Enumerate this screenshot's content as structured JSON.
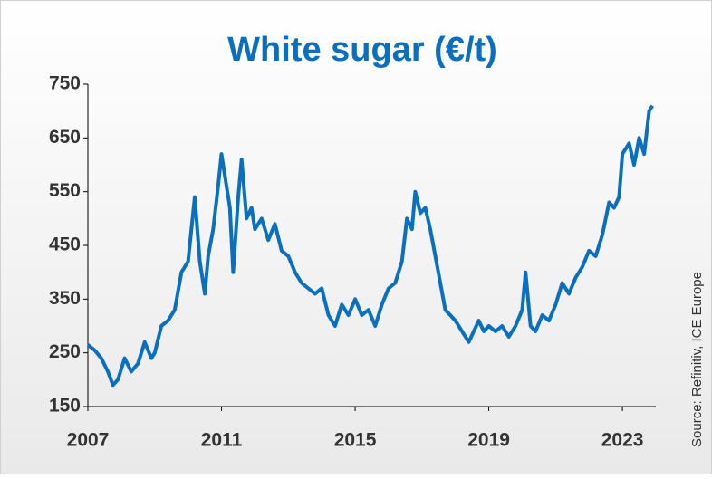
{
  "chart_data": {
    "type": "line",
    "title": "White sugar (€/t)",
    "source": "Source: Refinitiv, ICE Europe",
    "color": "#0a6fbf",
    "x": [
      2007.0,
      2007.2,
      2007.4,
      2007.6,
      2007.75,
      2007.9,
      2008.1,
      2008.3,
      2008.5,
      2008.7,
      2008.9,
      2009.0,
      2009.2,
      2009.4,
      2009.6,
      2009.8,
      2010.0,
      2010.1,
      2010.2,
      2010.35,
      2010.5,
      2010.6,
      2010.75,
      2010.9,
      2011.0,
      2011.1,
      2011.25,
      2011.35,
      2011.5,
      2011.6,
      2011.75,
      2011.9,
      2012.0,
      2012.2,
      2012.4,
      2012.6,
      2012.8,
      2013.0,
      2013.2,
      2013.4,
      2013.6,
      2013.8,
      2014.0,
      2014.2,
      2014.4,
      2014.6,
      2014.8,
      2015.0,
      2015.2,
      2015.4,
      2015.6,
      2015.8,
      2016.0,
      2016.2,
      2016.4,
      2016.55,
      2016.7,
      2016.8,
      2016.95,
      2017.1,
      2017.25,
      2017.4,
      2017.55,
      2017.7,
      2017.85,
      2018.0,
      2018.2,
      2018.4,
      2018.55,
      2018.7,
      2018.85,
      2019.0,
      2019.2,
      2019.4,
      2019.6,
      2019.8,
      2020.0,
      2020.1,
      2020.25,
      2020.4,
      2020.6,
      2020.8,
      2021.0,
      2021.2,
      2021.4,
      2021.6,
      2021.8,
      2022.0,
      2022.2,
      2022.4,
      2022.6,
      2022.75,
      2022.9,
      2023.0,
      2023.2,
      2023.35,
      2023.5,
      2023.65,
      2023.8,
      2023.9
    ],
    "values": [
      265,
      255,
      240,
      215,
      190,
      200,
      240,
      215,
      230,
      270,
      240,
      250,
      300,
      310,
      330,
      400,
      420,
      480,
      540,
      420,
      360,
      430,
      480,
      560,
      620,
      580,
      520,
      400,
      540,
      610,
      500,
      520,
      480,
      500,
      460,
      490,
      440,
      430,
      400,
      380,
      370,
      360,
      370,
      320,
      300,
      340,
      320,
      350,
      320,
      330,
      300,
      340,
      370,
      380,
      420,
      500,
      480,
      550,
      510,
      520,
      480,
      430,
      380,
      330,
      320,
      310,
      290,
      270,
      290,
      310,
      290,
      300,
      290,
      300,
      280,
      300,
      330,
      400,
      300,
      290,
      320,
      310,
      340,
      380,
      360,
      390,
      410,
      440,
      430,
      470,
      530,
      520,
      540,
      620,
      640,
      600,
      650,
      620,
      700,
      710
    ],
    "xlim": [
      2007,
      2024
    ],
    "xticks": [
      2007,
      2011,
      2015,
      2019,
      2023
    ],
    "ylim": [
      150,
      750
    ],
    "yticks": [
      150,
      250,
      350,
      450,
      550,
      650,
      750
    ]
  }
}
